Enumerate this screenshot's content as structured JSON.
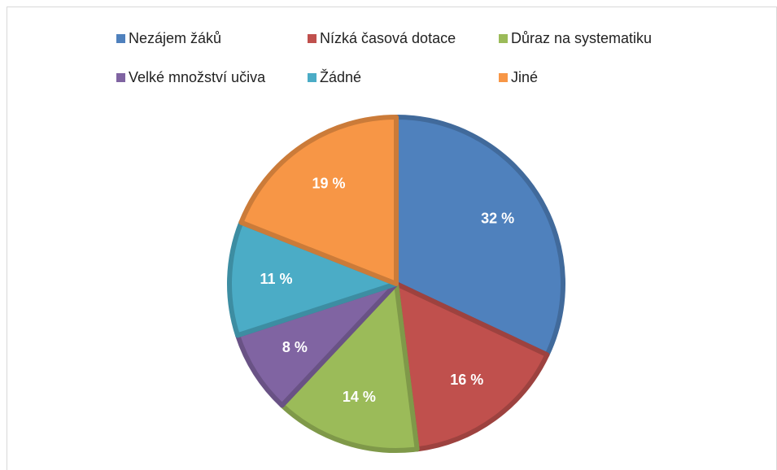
{
  "chart_data": {
    "type": "pie",
    "categories": [
      "Nezájem žáků",
      "Nízká časová dotace",
      "Důraz na systematiku",
      "Velké množství učiva",
      "Žádné",
      "Jiné"
    ],
    "values": [
      32,
      16,
      14,
      8,
      11,
      19
    ],
    "value_labels": [
      "32 %",
      "16 %",
      "14 %",
      "8 %",
      "11 %",
      "19 %"
    ],
    "colors": [
      "#4f81bd",
      "#c0504d",
      "#9bbb59",
      "#8064a2",
      "#4bacc6",
      "#f79646"
    ],
    "legend": "top"
  }
}
